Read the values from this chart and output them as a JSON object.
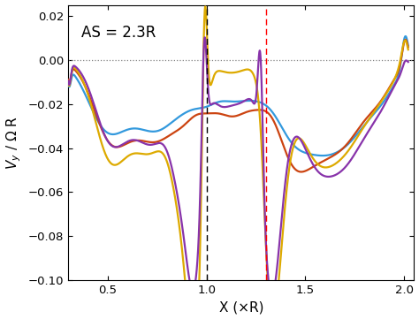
{
  "title": "AS = 2.3R",
  "xlabel": "X (×R)",
  "xlim": [
    0.3,
    2.05
  ],
  "ylim": [
    -0.1,
    0.025
  ],
  "yticks": [
    0.02,
    0,
    -0.02,
    -0.04,
    -0.06,
    -0.08,
    -0.1
  ],
  "xticks": [
    0.5,
    1.0,
    1.5,
    2.0
  ],
  "vline_black": 1.0,
  "vline_red": 1.3,
  "hline_y": 0.0,
  "colors": {
    "blue": "#3399dd",
    "orange": "#cc4411",
    "yellow": "#ddaa00",
    "purple": "#8833aa"
  },
  "lw": 1.6
}
